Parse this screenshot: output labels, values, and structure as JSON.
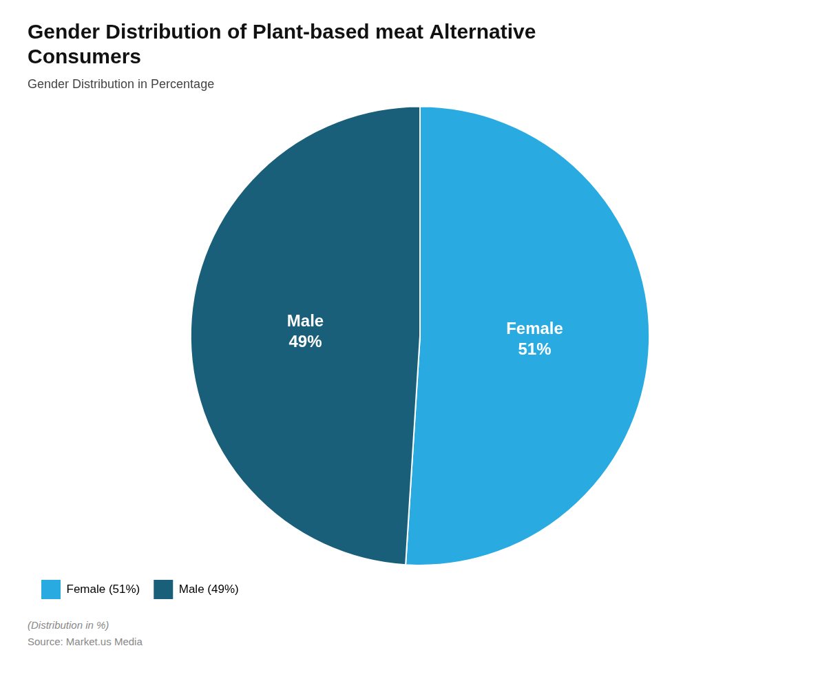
{
  "chart_data": {
    "type": "pie",
    "title": "Gender Distribution of Plant-based meat Alternative\nConsumers",
    "subtitle": "Gender Distribution in Percentage",
    "categories": [
      "Female",
      "Male"
    ],
    "values": [
      51,
      49
    ],
    "colors": [
      "#29ABE2",
      "#1A5F7A"
    ],
    "data_labels": true,
    "value_labels": [
      "51%",
      "49%"
    ],
    "legend": "lower left",
    "legend_labels": [
      "Female (51%)",
      "Male (49%)"
    ],
    "footer": [
      "(Distribution in %)",
      "Source: Market.us Media"
    ]
  }
}
